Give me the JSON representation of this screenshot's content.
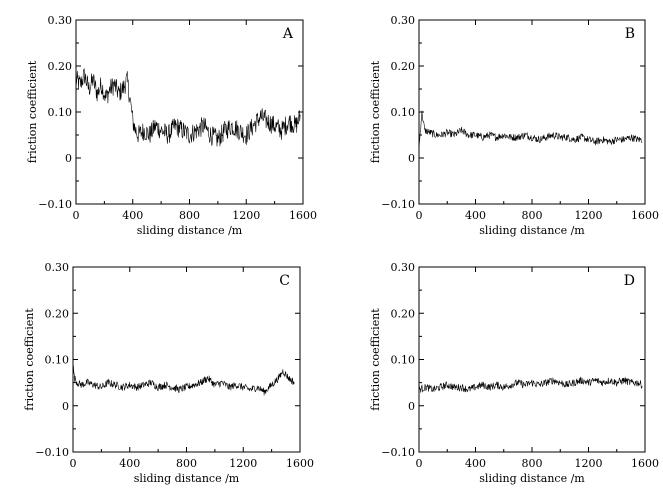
{
  "chart_data": [
    {
      "type": "line",
      "panel_label": "A",
      "xlabel": "sliding distance /m",
      "ylabel": "friction coefficient",
      "xlim": [
        0,
        1600
      ],
      "ylim": [
        -0.1,
        0.3
      ],
      "xticks": [
        "0",
        "400",
        "800",
        "1200",
        "1600"
      ],
      "yticks": [
        "−0.10",
        "0",
        "0.10",
        "0.20",
        "0.30"
      ],
      "series": [
        {
          "values_description_free": true,
          "x": [
            0,
            30,
            60,
            90,
            120,
            150,
            180,
            210,
            240,
            270,
            300,
            330,
            360,
            380,
            400,
            420,
            440,
            480,
            520,
            560,
            600,
            650,
            700,
            750,
            800,
            850,
            900,
            950,
            1000,
            1050,
            1100,
            1150,
            1200,
            1250,
            1300,
            1350,
            1400,
            1450,
            1500,
            1550,
            1580
          ],
          "y": [
            0.17,
            0.16,
            0.18,
            0.15,
            0.17,
            0.14,
            0.16,
            0.13,
            0.15,
            0.16,
            0.14,
            0.15,
            0.17,
            0.13,
            0.08,
            0.06,
            0.05,
            0.06,
            0.05,
            0.07,
            0.06,
            0.05,
            0.07,
            0.06,
            0.05,
            0.06,
            0.07,
            0.05,
            0.04,
            0.06,
            0.07,
            0.06,
            0.05,
            0.07,
            0.09,
            0.08,
            0.07,
            0.06,
            0.08,
            0.07,
            0.09
          ]
        }
      ]
    },
    {
      "type": "line",
      "panel_label": "B",
      "xlabel": "sliding distance /m",
      "ylabel": "friction coefficient",
      "xlim": [
        0,
        1600
      ],
      "ylim": [
        -0.1,
        0.3
      ],
      "xticks": [
        "0",
        "400",
        "800",
        "1200",
        "1600"
      ],
      "yticks": [
        "−0.10",
        "0",
        "0.10",
        "0.20",
        "0.30"
      ],
      "series": [
        {
          "x": [
            0,
            20,
            40,
            80,
            120,
            160,
            200,
            250,
            300,
            350,
            400,
            450,
            500,
            550,
            600,
            650,
            700,
            750,
            800,
            850,
            900,
            950,
            1000,
            1050,
            1100,
            1150,
            1200,
            1250,
            1300,
            1350,
            1400,
            1450,
            1500,
            1550,
            1580
          ],
          "y": [
            0.02,
            0.1,
            0.06,
            0.055,
            0.05,
            0.05,
            0.055,
            0.05,
            0.06,
            0.05,
            0.05,
            0.045,
            0.05,
            0.045,
            0.05,
            0.045,
            0.045,
            0.05,
            0.045,
            0.04,
            0.045,
            0.05,
            0.045,
            0.045,
            0.04,
            0.045,
            0.04,
            0.035,
            0.04,
            0.035,
            0.04,
            0.04,
            0.045,
            0.04,
            0.04
          ]
        }
      ]
    },
    {
      "type": "line",
      "panel_label": "C",
      "xlabel": "sliding distance /m",
      "ylabel": "friction coefficient",
      "xlim": [
        0,
        1600
      ],
      "ylim": [
        -0.1,
        0.3
      ],
      "xticks": [
        "0",
        "400",
        "800",
        "1200",
        "1600"
      ],
      "yticks": [
        "−0.10",
        "0",
        "0.10",
        "0.20",
        "0.30"
      ],
      "series": [
        {
          "x": [
            0,
            10,
            30,
            60,
            100,
            150,
            200,
            250,
            300,
            350,
            400,
            450,
            500,
            550,
            600,
            650,
            700,
            750,
            800,
            850,
            900,
            950,
            1000,
            1050,
            1100,
            1150,
            1200,
            1250,
            1300,
            1350,
            1400,
            1450,
            1480,
            1520,
            1560
          ],
          "y": [
            0.09,
            0.06,
            0.05,
            0.045,
            0.05,
            0.045,
            0.04,
            0.05,
            0.045,
            0.04,
            0.045,
            0.04,
            0.045,
            0.05,
            0.04,
            0.045,
            0.04,
            0.035,
            0.04,
            0.045,
            0.05,
            0.06,
            0.045,
            0.05,
            0.04,
            0.045,
            0.04,
            0.035,
            0.04,
            0.03,
            0.045,
            0.06,
            0.075,
            0.06,
            0.05
          ]
        }
      ]
    },
    {
      "type": "line",
      "panel_label": "D",
      "xlabel": "sliding distance /m",
      "ylabel": "friction coefficient",
      "xlim": [
        0,
        1600
      ],
      "ylim": [
        -0.1,
        0.3
      ],
      "xticks": [
        "0",
        "400",
        "800",
        "1200",
        "1600"
      ],
      "yticks": [
        "−0.10",
        "0",
        "0.10",
        "0.20",
        "0.30"
      ],
      "series": [
        {
          "x": [
            0,
            50,
            100,
            150,
            200,
            250,
            300,
            350,
            400,
            450,
            500,
            550,
            600,
            650,
            700,
            750,
            800,
            850,
            900,
            950,
            1000,
            1050,
            1100,
            1150,
            1200,
            1250,
            1300,
            1350,
            1400,
            1450,
            1500,
            1550,
            1580
          ],
          "y": [
            0.035,
            0.04,
            0.035,
            0.04,
            0.045,
            0.04,
            0.04,
            0.035,
            0.04,
            0.045,
            0.04,
            0.045,
            0.04,
            0.045,
            0.05,
            0.045,
            0.05,
            0.045,
            0.05,
            0.055,
            0.05,
            0.045,
            0.05,
            0.055,
            0.05,
            0.055,
            0.05,
            0.055,
            0.05,
            0.055,
            0.05,
            0.05,
            0.045
          ]
        }
      ]
    }
  ]
}
